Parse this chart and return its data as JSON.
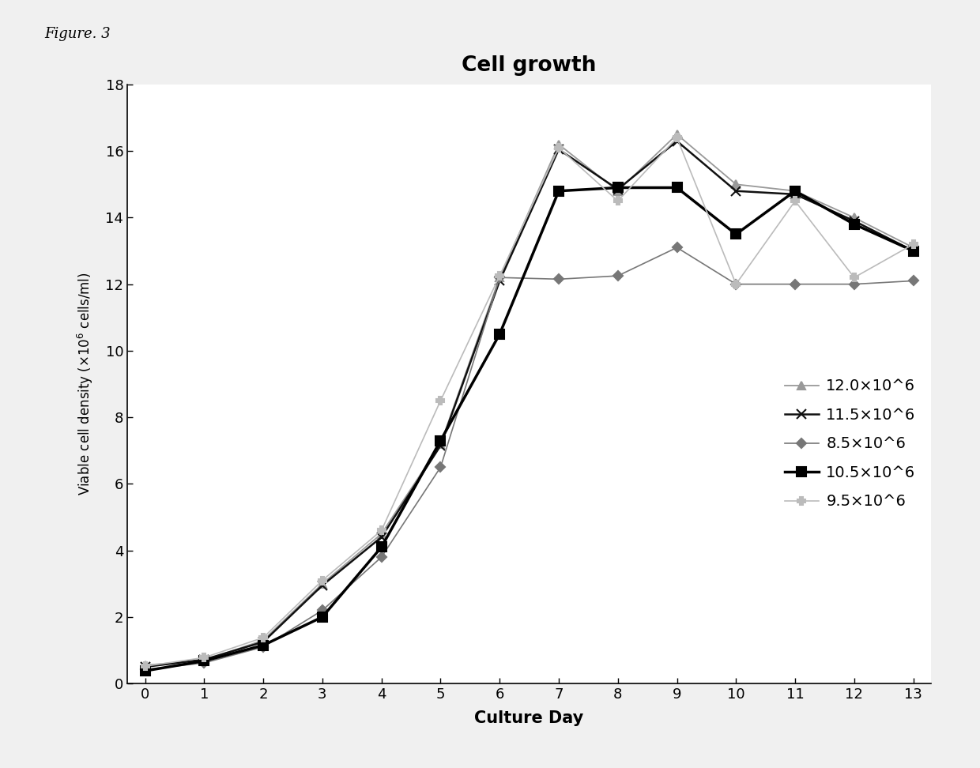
{
  "title": "Cell growth",
  "xlabel": "Culture Day",
  "ylabel_line1": "Viable cell density (x10",
  "ylabel_sup": "6",
  "ylabel_line2": " cells/ml)",
  "x": [
    0,
    1,
    2,
    3,
    4,
    5,
    6,
    7,
    8,
    9,
    10,
    11,
    12,
    13
  ],
  "series": [
    {
      "label": "12.0×10^6",
      "color": "#999999",
      "marker": "^",
      "linewidth": 1.3,
      "markersize": 7,
      "markerfacecolor": "#999999",
      "values": [
        0.55,
        0.7,
        1.3,
        3.0,
        4.5,
        7.2,
        12.2,
        16.2,
        14.8,
        16.5,
        15.0,
        14.8,
        14.0,
        13.1
      ]
    },
    {
      "label": "11.5×10^6",
      "color": "#111111",
      "marker": "x",
      "linewidth": 1.8,
      "markersize": 9,
      "markerfacecolor": "none",
      "values": [
        0.5,
        0.72,
        1.25,
        2.95,
        4.4,
        7.15,
        12.1,
        16.05,
        14.85,
        16.3,
        14.8,
        14.7,
        13.9,
        13.0
      ]
    },
    {
      "label": "8.5×10^6",
      "color": "#777777",
      "marker": "D",
      "linewidth": 1.2,
      "markersize": 6,
      "markerfacecolor": "#777777",
      "values": [
        0.42,
        0.62,
        1.1,
        2.2,
        3.8,
        6.5,
        12.2,
        12.15,
        12.25,
        13.1,
        12.0,
        12.0,
        12.0,
        12.1
      ]
    },
    {
      "label": "10.5×10^6",
      "color": "#000000",
      "marker": "s",
      "linewidth": 2.5,
      "markersize": 8,
      "markerfacecolor": "#000000",
      "values": [
        0.38,
        0.68,
        1.15,
        2.0,
        4.1,
        7.3,
        10.5,
        14.8,
        14.9,
        14.9,
        13.5,
        14.8,
        13.8,
        13.0
      ]
    },
    {
      "label": "9.5×10^6",
      "color": "#bbbbbb",
      "marker": "P",
      "linewidth": 1.2,
      "markersize": 7,
      "markerfacecolor": "#bbbbbb",
      "values": [
        0.52,
        0.78,
        1.38,
        3.1,
        4.6,
        8.5,
        12.25,
        16.1,
        14.5,
        16.4,
        12.0,
        14.5,
        12.2,
        13.2
      ]
    }
  ],
  "ylim": [
    0,
    18
  ],
  "yticks": [
    0,
    2,
    4,
    6,
    8,
    10,
    12,
    14,
    16,
    18
  ],
  "xticks": [
    0,
    1,
    2,
    3,
    4,
    5,
    6,
    7,
    8,
    9,
    10,
    11,
    12,
    13
  ],
  "figsize": [
    12.4,
    9.72
  ],
  "dpi": 100,
  "outer_bg": "#f0f0f0",
  "plot_bg": "#ffffff",
  "figure_label": "Figure. 3"
}
